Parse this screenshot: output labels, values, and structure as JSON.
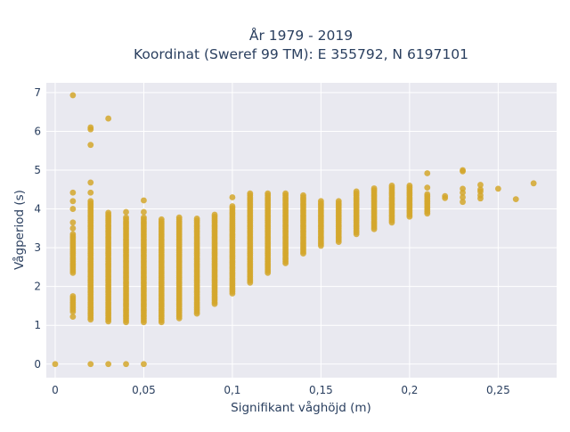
{
  "chart_data": {
    "type": "scatter",
    "title_line1": "År 1979 - 2019",
    "title_line2": "Koordinat (Sweref 99 TM): E 355792, N 6197101",
    "xlabel": "Signifikant våghöjd (m)",
    "ylabel": "Vågperiod (s)",
    "xlim": [
      -0.005,
      0.283
    ],
    "ylim": [
      -0.35,
      7.25
    ],
    "x_ticks": [
      0,
      0.05,
      0.1,
      0.15,
      0.2,
      0.25
    ],
    "x_tick_labels": [
      "0",
      "0,05",
      "0,1",
      "0,15",
      "0,2",
      "0,25"
    ],
    "y_ticks": [
      0,
      1,
      2,
      3,
      4,
      5,
      6,
      7
    ],
    "y_tick_labels": [
      "0",
      "1",
      "2",
      "3",
      "4",
      "5",
      "6",
      "7"
    ],
    "grid": true,
    "marker_color": "#d4a72c",
    "plot_background": "#e9e9f0",
    "columns": [
      {
        "x": 0.0,
        "ranges": [
          [
            0.0,
            0.0
          ]
        ],
        "points": []
      },
      {
        "x": 0.01,
        "ranges": [
          [
            1.22,
            1.25
          ],
          [
            1.35,
            1.75
          ],
          [
            2.35,
            3.35
          ]
        ],
        "points": [
          3.5,
          3.65,
          4.0,
          4.2,
          4.42,
          6.93
        ]
      },
      {
        "x": 0.02,
        "ranges": [
          [
            1.15,
            4.2
          ]
        ],
        "points": [
          0.0,
          4.42,
          4.68,
          5.65,
          6.05,
          6.1
        ]
      },
      {
        "x": 0.03,
        "ranges": [
          [
            1.1,
            3.92
          ]
        ],
        "points": [
          0.0,
          6.33
        ]
      },
      {
        "x": 0.04,
        "ranges": [
          [
            1.08,
            3.8
          ]
        ],
        "points": [
          0.0,
          3.92
        ]
      },
      {
        "x": 0.05,
        "ranges": [
          [
            1.08,
            3.8
          ]
        ],
        "points": [
          0.0,
          3.92,
          4.22
        ]
      },
      {
        "x": 0.06,
        "ranges": [
          [
            1.08,
            3.75
          ]
        ],
        "points": []
      },
      {
        "x": 0.07,
        "ranges": [
          [
            1.18,
            3.82
          ]
        ],
        "points": []
      },
      {
        "x": 0.08,
        "ranges": [
          [
            1.3,
            3.78
          ]
        ],
        "points": []
      },
      {
        "x": 0.09,
        "ranges": [
          [
            1.55,
            3.88
          ]
        ],
        "points": []
      },
      {
        "x": 0.1,
        "ranges": [
          [
            1.82,
            4.1
          ]
        ],
        "points": [
          4.3
        ]
      },
      {
        "x": 0.11,
        "ranges": [
          [
            2.1,
            4.42
          ]
        ],
        "points": []
      },
      {
        "x": 0.12,
        "ranges": [
          [
            2.35,
            4.42
          ]
        ],
        "points": []
      },
      {
        "x": 0.13,
        "ranges": [
          [
            2.6,
            4.42
          ]
        ],
        "points": []
      },
      {
        "x": 0.14,
        "ranges": [
          [
            2.85,
            4.35
          ]
        ],
        "points": []
      },
      {
        "x": 0.15,
        "ranges": [
          [
            3.05,
            4.2
          ]
        ],
        "points": []
      },
      {
        "x": 0.16,
        "ranges": [
          [
            3.15,
            4.22
          ]
        ],
        "points": []
      },
      {
        "x": 0.17,
        "ranges": [
          [
            3.35,
            4.48
          ]
        ],
        "points": []
      },
      {
        "x": 0.18,
        "ranges": [
          [
            3.48,
            4.55
          ]
        ],
        "points": []
      },
      {
        "x": 0.19,
        "ranges": [
          [
            3.65,
            4.62
          ]
        ],
        "points": []
      },
      {
        "x": 0.2,
        "ranges": [
          [
            3.8,
            4.62
          ]
        ],
        "points": []
      },
      {
        "x": 0.21,
        "ranges": [
          [
            3.88,
            4.4
          ]
        ],
        "points": [
          4.55,
          4.92
        ]
      },
      {
        "x": 0.22,
        "ranges": [],
        "points": [
          4.28,
          4.33
        ]
      },
      {
        "x": 0.23,
        "ranges": [],
        "points": [
          4.18,
          4.3,
          4.42,
          4.52,
          4.97,
          5.0
        ]
      },
      {
        "x": 0.24,
        "ranges": [],
        "points": [
          4.27,
          4.35,
          4.45,
          4.5,
          4.62
        ]
      },
      {
        "x": 0.25,
        "ranges": [],
        "points": [
          4.52
        ]
      },
      {
        "x": 0.26,
        "ranges": [],
        "points": [
          4.25
        ]
      },
      {
        "x": 0.27,
        "ranges": [],
        "points": [
          4.66
        ]
      }
    ]
  }
}
